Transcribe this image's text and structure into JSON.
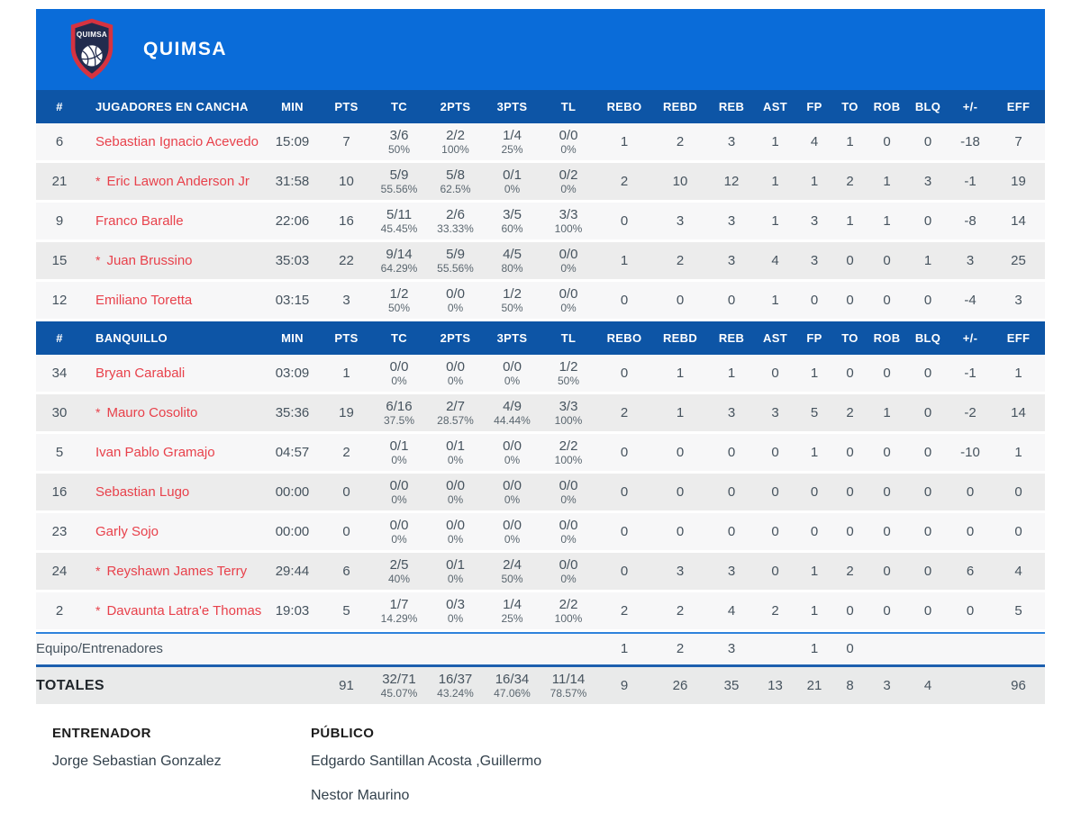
{
  "team": {
    "name": "QUIMSA",
    "logo_text": "QUIMSA"
  },
  "columns": [
    {
      "key": "num",
      "label": "#"
    },
    {
      "key": "name",
      "label": ""
    },
    {
      "key": "min",
      "label": "MIN"
    },
    {
      "key": "pts",
      "label": "PTS"
    },
    {
      "key": "tc",
      "label": "TC"
    },
    {
      "key": "p2",
      "label": "2PTS"
    },
    {
      "key": "p3",
      "label": "3PTS"
    },
    {
      "key": "tl",
      "label": "TL"
    },
    {
      "key": "rebo",
      "label": "REBO"
    },
    {
      "key": "rebd",
      "label": "REBD"
    },
    {
      "key": "reb",
      "label": "REB"
    },
    {
      "key": "ast",
      "label": "AST"
    },
    {
      "key": "fp",
      "label": "FP"
    },
    {
      "key": "to",
      "label": "TO"
    },
    {
      "key": "rob",
      "label": "ROB"
    },
    {
      "key": "blq",
      "label": "BLQ"
    },
    {
      "key": "pm",
      "label": "+/-"
    },
    {
      "key": "eff",
      "label": "EFF"
    }
  ],
  "on_court": {
    "header_label": "JUGADORES EN CANCHA",
    "rows": [
      {
        "num": "6",
        "name": "Sebastian Ignacio Acevedo",
        "starter": false,
        "min": "15:09",
        "pts": "7",
        "tc": [
          "3/6",
          "50%"
        ],
        "p2": [
          "2/2",
          "100%"
        ],
        "p3": [
          "1/4",
          "25%"
        ],
        "tl": [
          "0/0",
          "0%"
        ],
        "rebo": "1",
        "rebd": "2",
        "reb": "3",
        "ast": "1",
        "fp": "4",
        "to": "1",
        "rob": "0",
        "blq": "0",
        "pm": "-18",
        "eff": "7"
      },
      {
        "num": "21",
        "name": "Eric Lawon Anderson Jr",
        "starter": true,
        "min": "31:58",
        "pts": "10",
        "tc": [
          "5/9",
          "55.56%"
        ],
        "p2": [
          "5/8",
          "62.5%"
        ],
        "p3": [
          "0/1",
          "0%"
        ],
        "tl": [
          "0/2",
          "0%"
        ],
        "rebo": "2",
        "rebd": "10",
        "reb": "12",
        "ast": "1",
        "fp": "1",
        "to": "2",
        "rob": "1",
        "blq": "3",
        "pm": "-1",
        "eff": "19"
      },
      {
        "num": "9",
        "name": "Franco Baralle",
        "starter": false,
        "min": "22:06",
        "pts": "16",
        "tc": [
          "5/11",
          "45.45%"
        ],
        "p2": [
          "2/6",
          "33.33%"
        ],
        "p3": [
          "3/5",
          "60%"
        ],
        "tl": [
          "3/3",
          "100%"
        ],
        "rebo": "0",
        "rebd": "3",
        "reb": "3",
        "ast": "1",
        "fp": "3",
        "to": "1",
        "rob": "1",
        "blq": "0",
        "pm": "-8",
        "eff": "14"
      },
      {
        "num": "15",
        "name": "Juan Brussino",
        "starter": true,
        "min": "35:03",
        "pts": "22",
        "tc": [
          "9/14",
          "64.29%"
        ],
        "p2": [
          "5/9",
          "55.56%"
        ],
        "p3": [
          "4/5",
          "80%"
        ],
        "tl": [
          "0/0",
          "0%"
        ],
        "rebo": "1",
        "rebd": "2",
        "reb": "3",
        "ast": "4",
        "fp": "3",
        "to": "0",
        "rob": "0",
        "blq": "1",
        "pm": "3",
        "eff": "25"
      },
      {
        "num": "12",
        "name": "Emiliano Toretta",
        "starter": false,
        "min": "03:15",
        "pts": "3",
        "tc": [
          "1/2",
          "50%"
        ],
        "p2": [
          "0/0",
          "0%"
        ],
        "p3": [
          "1/2",
          "50%"
        ],
        "tl": [
          "0/0",
          "0%"
        ],
        "rebo": "0",
        "rebd": "0",
        "reb": "0",
        "ast": "1",
        "fp": "0",
        "to": "0",
        "rob": "0",
        "blq": "0",
        "pm": "-4",
        "eff": "3"
      }
    ]
  },
  "bench": {
    "header_label": "BANQUILLO",
    "rows": [
      {
        "num": "34",
        "name": "Bryan Carabali",
        "starter": false,
        "min": "03:09",
        "pts": "1",
        "tc": [
          "0/0",
          "0%"
        ],
        "p2": [
          "0/0",
          "0%"
        ],
        "p3": [
          "0/0",
          "0%"
        ],
        "tl": [
          "1/2",
          "50%"
        ],
        "rebo": "0",
        "rebd": "1",
        "reb": "1",
        "ast": "0",
        "fp": "1",
        "to": "0",
        "rob": "0",
        "blq": "0",
        "pm": "-1",
        "eff": "1"
      },
      {
        "num": "30",
        "name": "Mauro Cosolito",
        "starter": true,
        "min": "35:36",
        "pts": "19",
        "tc": [
          "6/16",
          "37.5%"
        ],
        "p2": [
          "2/7",
          "28.57%"
        ],
        "p3": [
          "4/9",
          "44.44%"
        ],
        "tl": [
          "3/3",
          "100%"
        ],
        "rebo": "2",
        "rebd": "1",
        "reb": "3",
        "ast": "3",
        "fp": "5",
        "to": "2",
        "rob": "1",
        "blq": "0",
        "pm": "-2",
        "eff": "14"
      },
      {
        "num": "5",
        "name": "Ivan Pablo Gramajo",
        "starter": false,
        "min": "04:57",
        "pts": "2",
        "tc": [
          "0/1",
          "0%"
        ],
        "p2": [
          "0/1",
          "0%"
        ],
        "p3": [
          "0/0",
          "0%"
        ],
        "tl": [
          "2/2",
          "100%"
        ],
        "rebo": "0",
        "rebd": "0",
        "reb": "0",
        "ast": "0",
        "fp": "1",
        "to": "0",
        "rob": "0",
        "blq": "0",
        "pm": "-10",
        "eff": "1"
      },
      {
        "num": "16",
        "name": "Sebastian Lugo",
        "starter": false,
        "min": "00:00",
        "pts": "0",
        "tc": [
          "0/0",
          "0%"
        ],
        "p2": [
          "0/0",
          "0%"
        ],
        "p3": [
          "0/0",
          "0%"
        ],
        "tl": [
          "0/0",
          "0%"
        ],
        "rebo": "0",
        "rebd": "0",
        "reb": "0",
        "ast": "0",
        "fp": "0",
        "to": "0",
        "rob": "0",
        "blq": "0",
        "pm": "0",
        "eff": "0"
      },
      {
        "num": "23",
        "name": "Garly Sojo",
        "starter": false,
        "min": "00:00",
        "pts": "0",
        "tc": [
          "0/0",
          "0%"
        ],
        "p2": [
          "0/0",
          "0%"
        ],
        "p3": [
          "0/0",
          "0%"
        ],
        "tl": [
          "0/0",
          "0%"
        ],
        "rebo": "0",
        "rebd": "0",
        "reb": "0",
        "ast": "0",
        "fp": "0",
        "to": "0",
        "rob": "0",
        "blq": "0",
        "pm": "0",
        "eff": "0"
      },
      {
        "num": "24",
        "name": "Reyshawn James Terry",
        "starter": true,
        "min": "29:44",
        "pts": "6",
        "tc": [
          "2/5",
          "40%"
        ],
        "p2": [
          "0/1",
          "0%"
        ],
        "p3": [
          "2/4",
          "50%"
        ],
        "tl": [
          "0/0",
          "0%"
        ],
        "rebo": "0",
        "rebd": "3",
        "reb": "3",
        "ast": "0",
        "fp": "1",
        "to": "2",
        "rob": "0",
        "blq": "0",
        "pm": "6",
        "eff": "4"
      },
      {
        "num": "2",
        "name": "Davaunta Latra'e Thomas",
        "starter": true,
        "min": "19:03",
        "pts": "5",
        "tc": [
          "1/7",
          "14.29%"
        ],
        "p2": [
          "0/3",
          "0%"
        ],
        "p3": [
          "1/4",
          "25%"
        ],
        "tl": [
          "2/2",
          "100%"
        ],
        "rebo": "2",
        "rebd": "2",
        "reb": "4",
        "ast": "2",
        "fp": "1",
        "to": "0",
        "rob": "0",
        "blq": "0",
        "pm": "0",
        "eff": "5"
      }
    ]
  },
  "team_row": {
    "label": "Equipo/Entrenadores",
    "rebo": "1",
    "rebd": "2",
    "reb": "3",
    "ast": "",
    "fp": "1",
    "to": "0",
    "rob": "",
    "blq": "",
    "pm": "",
    "eff": ""
  },
  "totals_row": {
    "label": "TOTALES",
    "pts": "91",
    "tc": [
      "32/71",
      "45.07%"
    ],
    "p2": [
      "16/37",
      "43.24%"
    ],
    "p3": [
      "16/34",
      "47.06%"
    ],
    "tl": [
      "11/14",
      "78.57%"
    ],
    "rebo": "9",
    "rebd": "26",
    "reb": "35",
    "ast": "13",
    "fp": "21",
    "to": "8",
    "rob": "3",
    "blq": "4",
    "pm": "",
    "eff": "96"
  },
  "footer": {
    "coach_label": "ENTRENADOR",
    "coach_name": "Jorge Sebastian Gonzalez",
    "public_label": "PÚBLICO",
    "public_lines": [
      "Edgardo Santillan Acosta ,Guillermo",
      "Nestor Maurino"
    ]
  },
  "colors": {
    "header_blue": "#0a6cd9",
    "table_header_blue": "#0d55a6",
    "player_name_red": "#e8414b",
    "row_odd": "#f7f7f8",
    "row_even": "#ececec",
    "totals_border": "#1d5fae",
    "team_row_border": "#2f83dc"
  }
}
